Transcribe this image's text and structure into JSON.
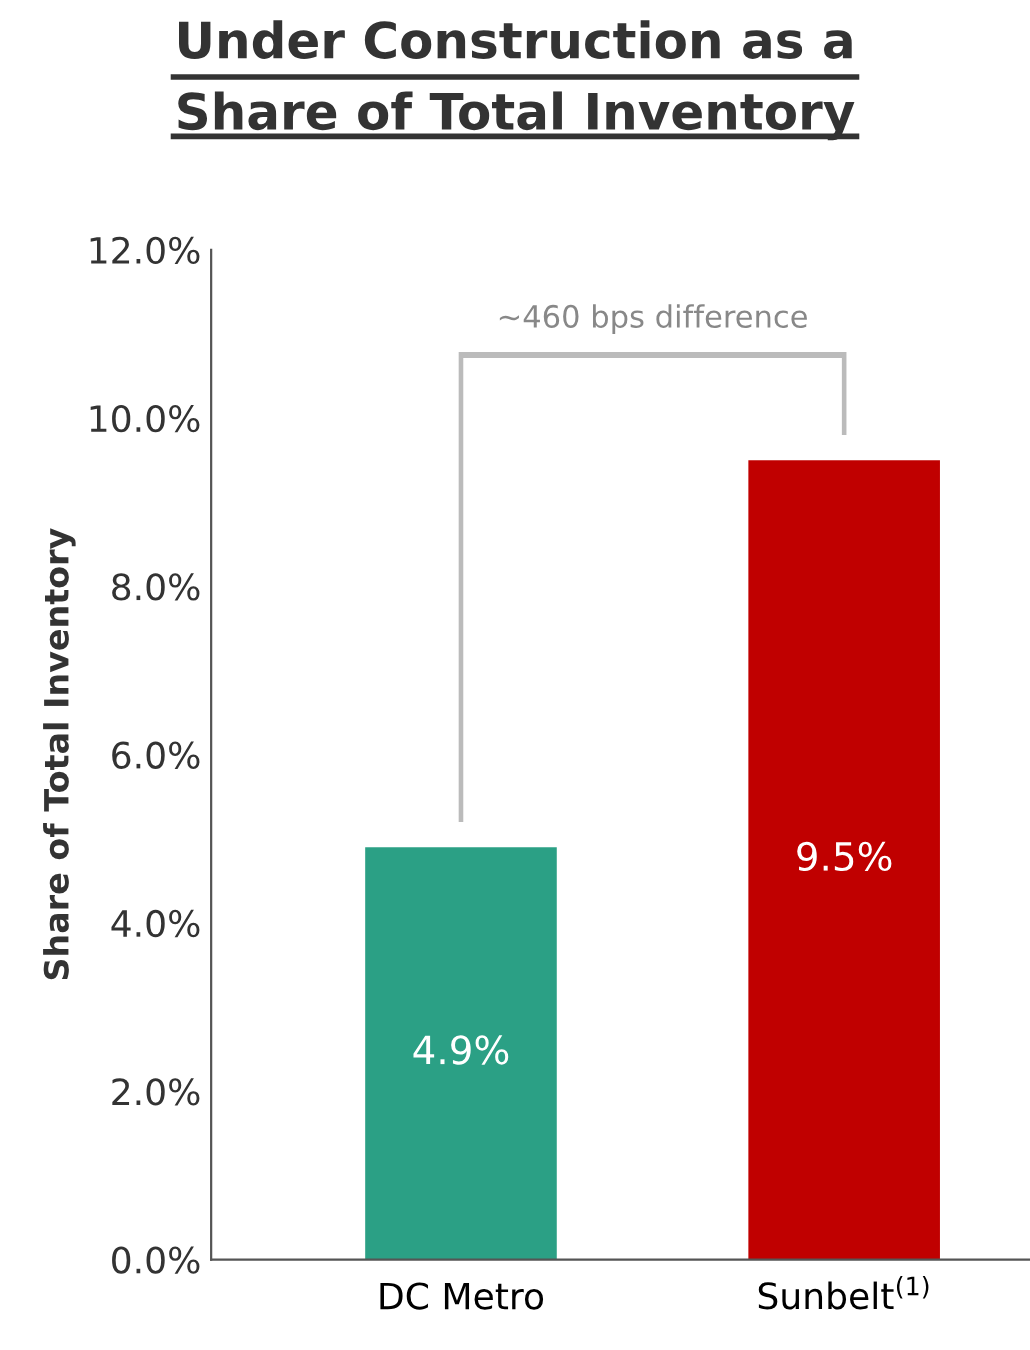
{
  "chart_data": {
    "type": "bar",
    "title": "Under Construction as a\nShare of Total Inventory",
    "ylabel": "Share of Total Inventory",
    "categories": [
      "DC Metro",
      "Sunbelt$^{(1)}$"
    ],
    "values": [
      4.9,
      9.5
    ],
    "colors": [
      "#2ba085",
      "#c00000"
    ],
    "value_labels": [
      "4.9%",
      "9.5%"
    ],
    "ylim": [
      0,
      12
    ],
    "yticks": [
      {
        "value": 0,
        "label": "0.0%"
      },
      {
        "value": 2,
        "label": "2.0%"
      },
      {
        "value": 4,
        "label": "4.0%"
      },
      {
        "value": 6,
        "label": "6.0%"
      },
      {
        "value": 8,
        "label": "8.0%"
      },
      {
        "value": 10,
        "label": "10.0%"
      },
      {
        "value": 12,
        "label": "12.0%"
      }
    ],
    "annotations": [
      "~460 bps difference"
    ],
    "grid": false,
    "legend": false
  }
}
